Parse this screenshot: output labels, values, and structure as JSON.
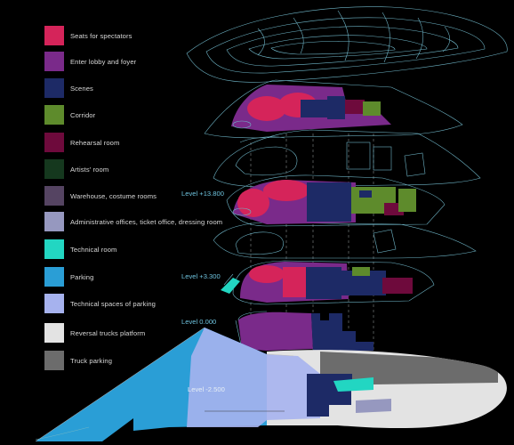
{
  "legend": [
    {
      "label": "Seats for spectators",
      "color": "#d5245a"
    },
    {
      "label": "Enter lobby and foyer",
      "color": "#7a2a8a"
    },
    {
      "label": "Scenes",
      "color": "#1d2a66"
    },
    {
      "label": "Corridor",
      "color": "#5e8b2c"
    },
    {
      "label": "Rehearsal room",
      "color": "#6e0a3c"
    },
    {
      "label": "Artists' room",
      "color": "#15381e"
    },
    {
      "label": "Warehouse, costume rooms",
      "color": "#554462"
    },
    {
      "label": "Administrative offices, ticket office, dressing room",
      "color": "#9698bf"
    },
    {
      "label": "Technical room",
      "color": "#22d6c2"
    },
    {
      "label": "Parking",
      "color": "#2a9ed6"
    },
    {
      "label": "Technical spaces of parking",
      "color": "#a6b2ee"
    },
    {
      "label": "Reversal trucks platform",
      "color": "#e3e3e3"
    },
    {
      "label": "Truck parking",
      "color": "#6c6c6c"
    }
  ],
  "levels": {
    "l13800": "Level +13.800",
    "l3300": "Level +3.300",
    "l0": "Level 0.000",
    "lm2500": "Level -2.500"
  },
  "colors": {
    "line": "#6fb6c8",
    "accent_text": "#6ec3de"
  }
}
